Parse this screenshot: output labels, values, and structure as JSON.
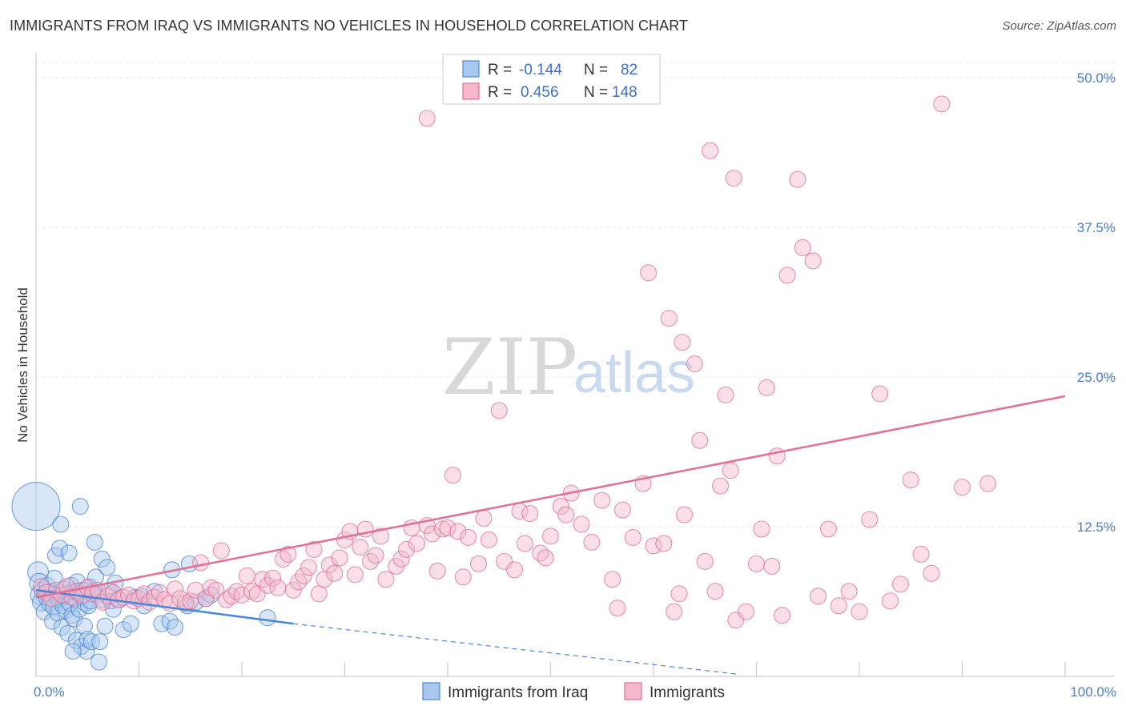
{
  "title": "IMMIGRANTS FROM IRAQ VS IMMIGRANTS NO VEHICLES IN HOUSEHOLD CORRELATION CHART",
  "source": "Source: ZipAtlas.com",
  "watermark": {
    "zip": "ZIP",
    "atlas": "atlas"
  },
  "colors": {
    "blue": "#4a86d8",
    "blue_fill": "#a9c8ef",
    "pink": "#e07094",
    "pink_fill": "#f5b8cb"
  },
  "legend": {
    "rows": [
      {
        "r_label": "R =",
        "r_value": "-0.144",
        "n_label": "N =",
        "n_value": "82"
      },
      {
        "r_label": "R =",
        "r_value": "0.456",
        "n_label": "N =",
        "n_value": "148"
      }
    ]
  },
  "bottom_legend": [
    "Immigrants from Iraq",
    "Immigrants"
  ],
  "chart_data": {
    "type": "scatter",
    "title": "IMMIGRANTS FROM IRAQ VS IMMIGRANTS NO VEHICLES IN HOUSEHOLD CORRELATION CHART",
    "xlabel": "",
    "ylabel": "No Vehicles in Household",
    "xlim": [
      0,
      100
    ],
    "ylim": [
      0,
      50
    ],
    "x_tick_labels": [
      "0.0%",
      "100.0%"
    ],
    "y_ticks": [
      12.5,
      25.0,
      37.5,
      50.0
    ],
    "y_tick_labels": [
      "12.5%",
      "25.0%",
      "37.5%",
      "50.0%"
    ],
    "grid": true,
    "legend_position": "top-center",
    "series": [
      {
        "name": "Immigrants from Iraq",
        "r": -0.144,
        "n": 82,
        "trend": {
          "x": [
            0,
            25
          ],
          "y": [
            7.2,
            4.4
          ],
          "dashed_to": [
            68,
            0.2
          ]
        },
        "points": [
          [
            0,
            14.2,
            3
          ],
          [
            0.2,
            8.7,
            1.3
          ],
          [
            0.3,
            7.8,
            1.2
          ],
          [
            0.4,
            6.8,
            1.2
          ],
          [
            0.5,
            6.2,
            1.1
          ],
          [
            0.6,
            7.2,
            1
          ],
          [
            0.8,
            5.4,
            1
          ],
          [
            1,
            6.6,
            1
          ],
          [
            1.1,
            7.6,
            1
          ],
          [
            1.3,
            6.1,
            1
          ],
          [
            1.5,
            7.1,
            1
          ],
          [
            1.6,
            4.6,
            1
          ],
          [
            1.7,
            5.8,
            1
          ],
          [
            1.8,
            8.2,
            1
          ],
          [
            1.9,
            10.1,
            1
          ],
          [
            2,
            6.8,
            1
          ],
          [
            2.1,
            5.3,
            1
          ],
          [
            2.2,
            6.4,
            1
          ],
          [
            2.3,
            10.7,
            1
          ],
          [
            2.4,
            12.7,
            1
          ],
          [
            2.5,
            4.1,
            1
          ],
          [
            2.6,
            5.9,
            1
          ],
          [
            2.7,
            7.3,
            1
          ],
          [
            2.8,
            6.7,
            1
          ],
          [
            2.9,
            5.5,
            1
          ],
          [
            3,
            6.9,
            1
          ],
          [
            3.1,
            3.6,
            1
          ],
          [
            3.2,
            10.3,
            1
          ],
          [
            3.3,
            6.1,
            1
          ],
          [
            3.4,
            7.6,
            1
          ],
          [
            3.5,
            5.1,
            1
          ],
          [
            3.6,
            7.1,
            1
          ],
          [
            3.7,
            4.8,
            1
          ],
          [
            3.8,
            6.5,
            1
          ],
          [
            3.9,
            3,
            1
          ],
          [
            4,
            7.9,
            1
          ],
          [
            4.1,
            6.9,
            1
          ],
          [
            4.2,
            5.6,
            1
          ],
          [
            4.3,
            14.2,
            1
          ],
          [
            4.4,
            2.5,
            1
          ],
          [
            4.5,
            6.6,
            1
          ],
          [
            4.6,
            7.2,
            1
          ],
          [
            4.7,
            4.2,
            1
          ],
          [
            4.8,
            6.1,
            1
          ],
          [
            4.9,
            2.1,
            1
          ],
          [
            5,
            3.1,
            1
          ],
          [
            5.1,
            5.9,
            1
          ],
          [
            5.2,
            7.5,
            1
          ],
          [
            5.3,
            6.3,
            1
          ],
          [
            5.4,
            2.9,
            1
          ],
          [
            5.5,
            7.1,
            1
          ],
          [
            5.7,
            11.2,
            1
          ],
          [
            5.8,
            8.3,
            1
          ],
          [
            6,
            6.8,
            1
          ],
          [
            6.1,
            1.2,
            1
          ],
          [
            6.2,
            2.9,
            1
          ],
          [
            6.4,
            9.8,
            1
          ],
          [
            6.5,
            6.4,
            1
          ],
          [
            6.7,
            4.2,
            1
          ],
          [
            6.9,
            9.1,
            1
          ],
          [
            7.1,
            7.2,
            1
          ],
          [
            7.3,
            6.3,
            1
          ],
          [
            7.5,
            5.6,
            1
          ],
          [
            7.7,
            7.8,
            1
          ],
          [
            8.1,
            6.4,
            1
          ],
          [
            8.5,
            3.9,
            1
          ],
          [
            9.2,
            4.4,
            1
          ],
          [
            9.6,
            6.6,
            1
          ],
          [
            10.2,
            6.7,
            1
          ],
          [
            10.5,
            5.9,
            1
          ],
          [
            11.5,
            7.1,
            1
          ],
          [
            12.2,
            4.4,
            1
          ],
          [
            13,
            4.6,
            1
          ],
          [
            13.2,
            8.9,
            1
          ],
          [
            14.7,
            5.9,
            1
          ],
          [
            14.9,
            9.4,
            1
          ],
          [
            15.5,
            6.2,
            1
          ],
          [
            16.5,
            6.5,
            1
          ],
          [
            17,
            6.8,
            1
          ],
          [
            22.5,
            4.9,
            1
          ],
          [
            13.5,
            4.1,
            1
          ],
          [
            3.6,
            2.1,
            1
          ]
        ]
      },
      {
        "name": "Immigrants",
        "r": 0.456,
        "n": 148,
        "trend": {
          "x": [
            0,
            100
          ],
          "y": [
            6.6,
            23.4
          ]
        },
        "points": [
          [
            0.5,
            7.5,
            1
          ],
          [
            1,
            7,
            1
          ],
          [
            1.5,
            6.5,
            1
          ],
          [
            2,
            7.2,
            1
          ],
          [
            2.5,
            6.8,
            1
          ],
          [
            3,
            7.5,
            1
          ],
          [
            3.5,
            6.6,
            1
          ],
          [
            4,
            7.1,
            1
          ],
          [
            4.5,
            6.8,
            1
          ],
          [
            5,
            7.4,
            1
          ],
          [
            5.5,
            6.9,
            1
          ],
          [
            6,
            7.2,
            1
          ],
          [
            6.5,
            6.2,
            1
          ],
          [
            7,
            6.7,
            1
          ],
          [
            7.5,
            7,
            1
          ],
          [
            8,
            6.4,
            1
          ],
          [
            8.5,
            6.6,
            1
          ],
          [
            9,
            6.8,
            1
          ],
          [
            9.5,
            6.3,
            1
          ],
          [
            10,
            6.5,
            1
          ],
          [
            10.5,
            6.9,
            1
          ],
          [
            11,
            6.2,
            1
          ],
          [
            11.5,
            6.6,
            1
          ],
          [
            12,
            7,
            1
          ],
          [
            12.5,
            6.4,
            1
          ],
          [
            13,
            6.1,
            1
          ],
          [
            13.5,
            7.3,
            1
          ],
          [
            14,
            6.5,
            1
          ],
          [
            14.5,
            6.1,
            1
          ],
          [
            15,
            6.3,
            1
          ],
          [
            15.5,
            7.2,
            1
          ],
          [
            16,
            9.5,
            1
          ],
          [
            16.5,
            6.5,
            1
          ],
          [
            17,
            7.4,
            1
          ],
          [
            17.5,
            7.2,
            1
          ],
          [
            18,
            10.5,
            1
          ],
          [
            18.5,
            6.4,
            1
          ],
          [
            19,
            6.7,
            1
          ],
          [
            19.5,
            7.1,
            1
          ],
          [
            20,
            6.8,
            1
          ],
          [
            20.5,
            8.4,
            1
          ],
          [
            21,
            7.1,
            1
          ],
          [
            21.5,
            6.9,
            1
          ],
          [
            22,
            8.1,
            1
          ],
          [
            22.5,
            7.6,
            1
          ],
          [
            23,
            8.2,
            1
          ],
          [
            23.5,
            7.4,
            1
          ],
          [
            24,
            9.8,
            1
          ],
          [
            24.5,
            10.2,
            1
          ],
          [
            25,
            7.2,
            1
          ],
          [
            25.5,
            7.9,
            1
          ],
          [
            26,
            8.4,
            1
          ],
          [
            26.5,
            9.1,
            1
          ],
          [
            27,
            10.6,
            1
          ],
          [
            27.5,
            6.9,
            1
          ],
          [
            28,
            8.1,
            1
          ],
          [
            28.5,
            9.3,
            1
          ],
          [
            29,
            8.6,
            1
          ],
          [
            29.5,
            9.9,
            1
          ],
          [
            30,
            11.4,
            1
          ],
          [
            30.5,
            12.1,
            1
          ],
          [
            31,
            8.5,
            1
          ],
          [
            31.5,
            10.8,
            1
          ],
          [
            32,
            12.3,
            1
          ],
          [
            32.5,
            9.6,
            1
          ],
          [
            33,
            10.1,
            1
          ],
          [
            33.5,
            11.7,
            1
          ],
          [
            34,
            8.1,
            1
          ],
          [
            35,
            9.2,
            1
          ],
          [
            35.5,
            9.8,
            1
          ],
          [
            36,
            10.6,
            1
          ],
          [
            36.5,
            12.4,
            1
          ],
          [
            37,
            11.1,
            1
          ],
          [
            38,
            12.6,
            1
          ],
          [
            38.5,
            11.9,
            1
          ],
          [
            39,
            8.8,
            1
          ],
          [
            39.5,
            12.3,
            1
          ],
          [
            40,
            12.4,
            1
          ],
          [
            40.5,
            16.8,
            1
          ],
          [
            41,
            12.1,
            1
          ],
          [
            41.5,
            8.3,
            1
          ],
          [
            42,
            11.6,
            1
          ],
          [
            43,
            9.4,
            1
          ],
          [
            43.5,
            13.2,
            1
          ],
          [
            44,
            11.4,
            1
          ],
          [
            45,
            22.2,
            1
          ],
          [
            45.5,
            9.6,
            1
          ],
          [
            46.5,
            8.9,
            1
          ],
          [
            47,
            13.8,
            1
          ],
          [
            47.5,
            11.1,
            1
          ],
          [
            48,
            13.6,
            1
          ],
          [
            49,
            10.3,
            1
          ],
          [
            49.5,
            9.9,
            1
          ],
          [
            50,
            11.7,
            1
          ],
          [
            51,
            14.2,
            1
          ],
          [
            51.5,
            13.5,
            1
          ],
          [
            52,
            15.3,
            1
          ],
          [
            53,
            12.7,
            1
          ],
          [
            54,
            11.2,
            1
          ],
          [
            55,
            14.7,
            1
          ],
          [
            56,
            8.1,
            1
          ],
          [
            56.5,
            5.7,
            1
          ],
          [
            57,
            13.9,
            1
          ],
          [
            58,
            11.6,
            1
          ],
          [
            59,
            16.1,
            1
          ],
          [
            60,
            10.9,
            1
          ],
          [
            61,
            11.1,
            1
          ],
          [
            62,
            5.4,
            1
          ],
          [
            62.5,
            6.9,
            1
          ],
          [
            63,
            13.5,
            1
          ],
          [
            64,
            26.1,
            1
          ],
          [
            64.5,
            19.7,
            1
          ],
          [
            65,
            9.6,
            1
          ],
          [
            66,
            7.1,
            1
          ],
          [
            66.5,
            15.9,
            1
          ],
          [
            67,
            23.5,
            1
          ],
          [
            67.5,
            17.2,
            1
          ],
          [
            68,
            4.7,
            1
          ],
          [
            69,
            5.4,
            1
          ],
          [
            70,
            9.4,
            1
          ],
          [
            70.5,
            12.3,
            1
          ],
          [
            71,
            24.1,
            1
          ],
          [
            71.5,
            9.2,
            1
          ],
          [
            72,
            18.4,
            1
          ],
          [
            72.5,
            5.1,
            1
          ],
          [
            73,
            33.5,
            1
          ],
          [
            74,
            41.5,
            1
          ],
          [
            74.5,
            35.8,
            1
          ],
          [
            76,
            6.7,
            1
          ],
          [
            77,
            12.3,
            1
          ],
          [
            78,
            5.9,
            1
          ],
          [
            79,
            7.1,
            1
          ],
          [
            80,
            5.4,
            1
          ],
          [
            81,
            13.1,
            1
          ],
          [
            82,
            23.6,
            1
          ],
          [
            83,
            6.3,
            1
          ],
          [
            84,
            7.7,
            1
          ],
          [
            85,
            16.4,
            1
          ],
          [
            86,
            10.2,
            1
          ],
          [
            87,
            8.6,
            1
          ],
          [
            90,
            15.8,
            1
          ],
          [
            92.5,
            16.1,
            1
          ],
          [
            59.5,
            33.7,
            1
          ],
          [
            61.5,
            29.9,
            1
          ],
          [
            62.8,
            27.9,
            1
          ],
          [
            65.5,
            43.9,
            1
          ],
          [
            67.8,
            41.6,
            1
          ],
          [
            88,
            47.8,
            1
          ],
          [
            38,
            46.6,
            1
          ],
          [
            75.5,
            34.7,
            1
          ]
        ]
      }
    ]
  }
}
